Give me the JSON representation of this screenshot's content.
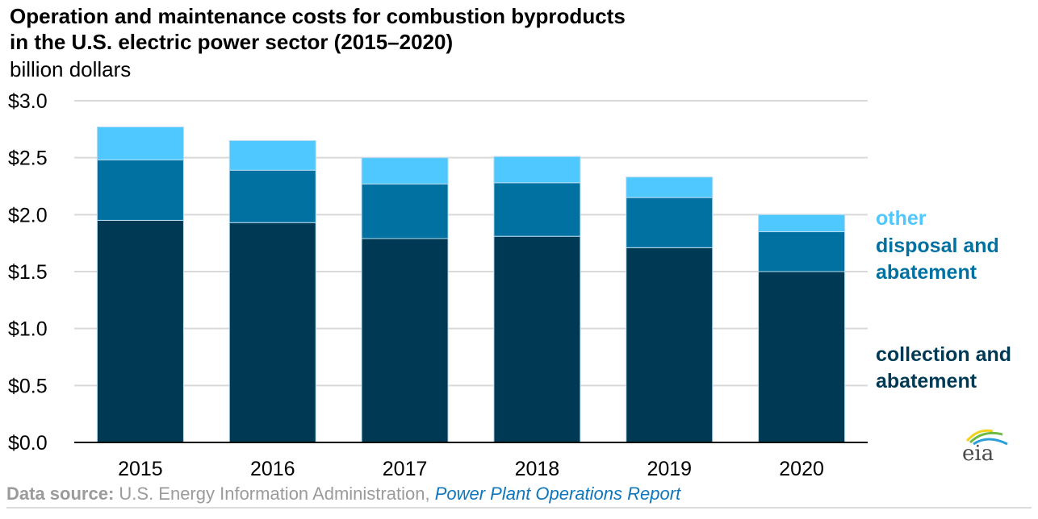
{
  "chart_data": {
    "type": "bar",
    "stacked": true,
    "title": "Operation and maintenance costs for combustion byproducts in the U.S. electric power sector (2015–2020)",
    "title_lines": [
      "Operation and maintenance costs for combustion byproducts",
      "in the U.S. electric power sector (2015–2020)"
    ],
    "ylabel": "billion dollars",
    "xlabel": "",
    "categories": [
      "2015",
      "2016",
      "2017",
      "2018",
      "2019",
      "2020"
    ],
    "ylim": [
      0,
      3.0
    ],
    "yticks": [
      0,
      0.5,
      1.0,
      1.5,
      2.0,
      2.5,
      3.0
    ],
    "ytick_labels": [
      "$0.0",
      "$0.5",
      "$1.0",
      "$1.5",
      "$2.0",
      "$2.5",
      "$3.0"
    ],
    "grid": true,
    "legend_position": "right",
    "series": [
      {
        "name": "collection and abatement",
        "color": "#003953",
        "values": [
          1.95,
          1.93,
          1.79,
          1.81,
          1.71,
          1.5
        ]
      },
      {
        "name": "disposal and abatement",
        "color": "#0071a1",
        "values": [
          0.53,
          0.46,
          0.48,
          0.47,
          0.44,
          0.35
        ]
      },
      {
        "name": "other",
        "color": "#4fc7ff",
        "values": [
          0.29,
          0.26,
          0.23,
          0.23,
          0.18,
          0.15
        ]
      }
    ]
  },
  "legend": {
    "other": [
      "other"
    ],
    "disposal": [
      "disposal and",
      "abatement"
    ],
    "collection": [
      "collection and",
      "abatement"
    ]
  },
  "footer": {
    "label": "Data source:",
    "text": " U.S. Energy Information Administration, ",
    "link": "Power Plant Operations Report"
  },
  "logo": {
    "text": "eia"
  }
}
